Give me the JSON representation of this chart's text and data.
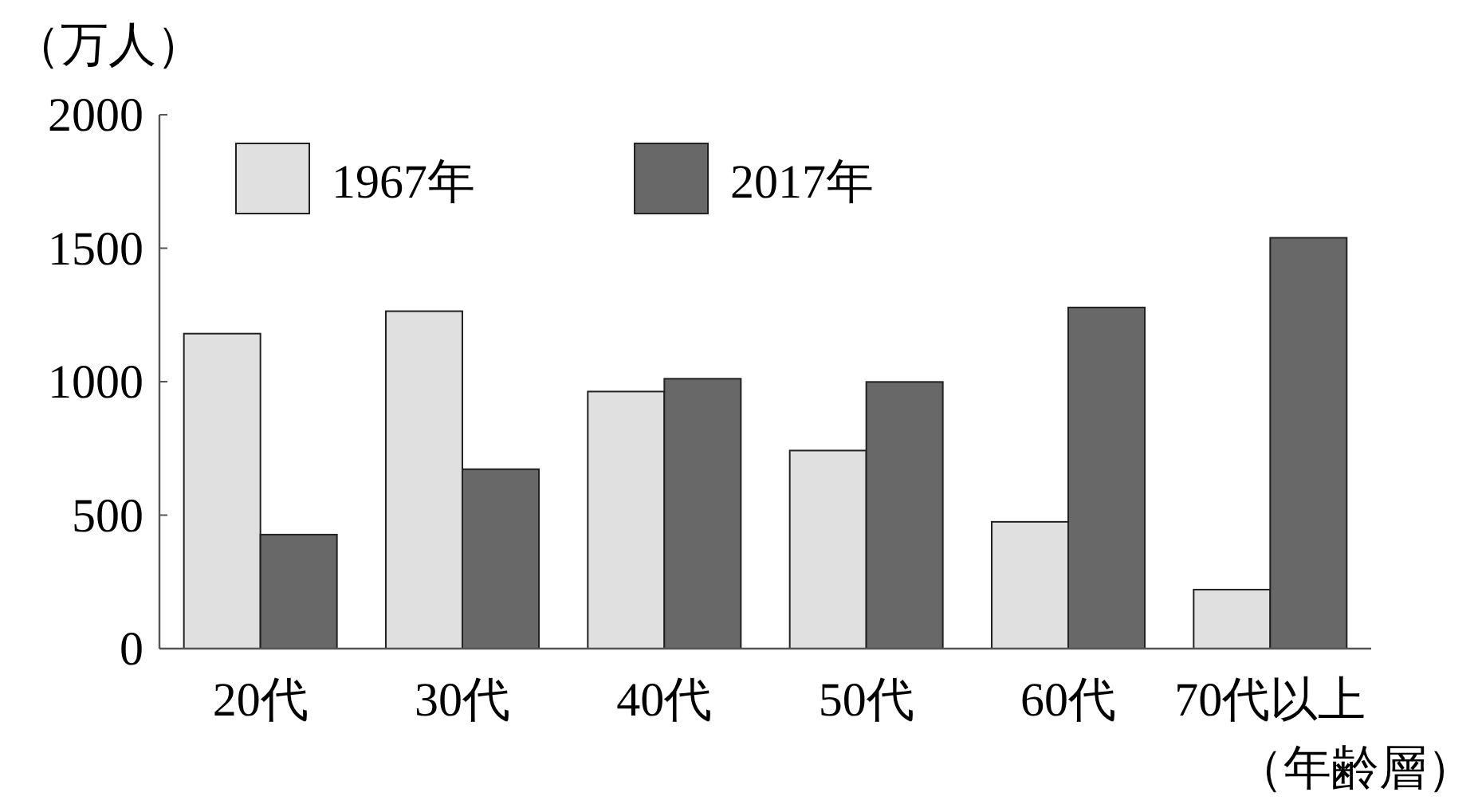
{
  "chart_data": {
    "type": "bar",
    "ylabel": "（万人）",
    "xlabel": "（年齢層）",
    "categories": [
      "20代",
      "30代",
      "40代",
      "50代",
      "60代",
      "70代以上"
    ],
    "series": [
      {
        "name": "1967年",
        "color": "#e0e0e0",
        "values": [
          1180,
          1264,
          963,
          742,
          475,
          221
        ]
      },
      {
        "name": "2017年",
        "color": "#686868",
        "values": [
          427,
          672,
          1011,
          999,
          1278,
          1539
        ]
      }
    ],
    "ylim": [
      0,
      2000
    ],
    "yticks": [
      0,
      500,
      1000,
      1500,
      2000
    ],
    "grid": false,
    "legend": "top left"
  }
}
